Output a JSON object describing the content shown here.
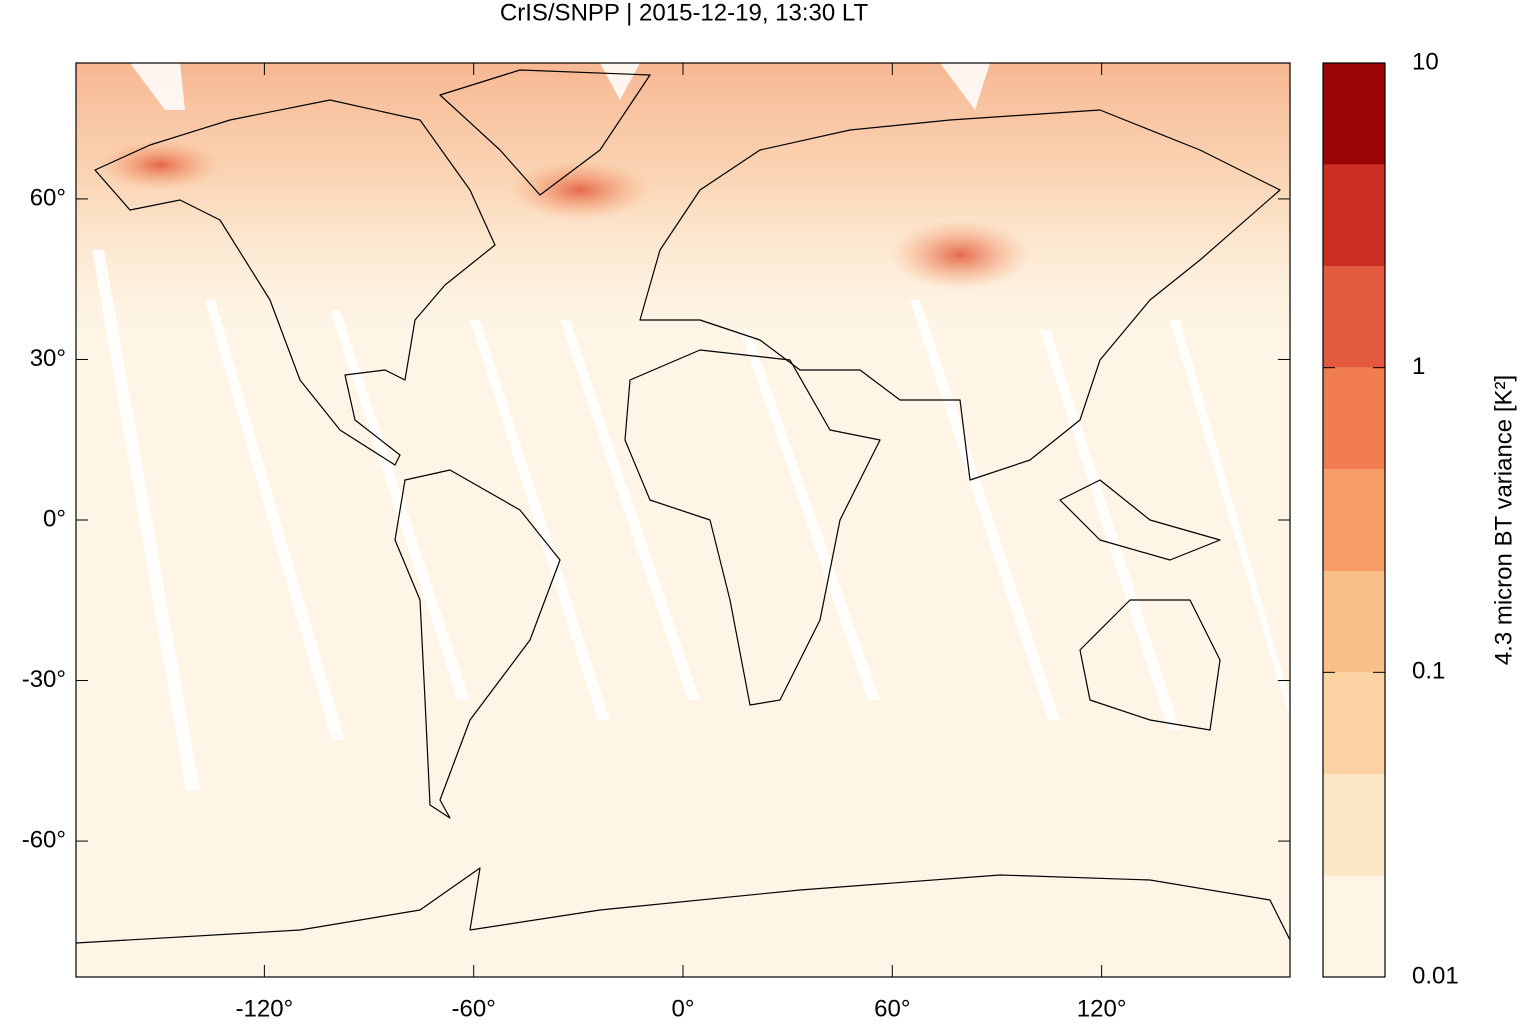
{
  "chart_data": {
    "type": "heatmap-map",
    "title": "CrIS/SNPP | 2015-12-19, 13:30 LT",
    "xlim": [
      -174,
      174
    ],
    "ylim": [
      -85.4,
      85.4
    ],
    "xticks": [
      {
        "value": -120,
        "label": "-120°"
      },
      {
        "value": -60,
        "label": "-60°"
      },
      {
        "value": 0,
        "label": "0°"
      },
      {
        "value": 60,
        "label": "60°"
      },
      {
        "value": 120,
        "label": "120°"
      }
    ],
    "yticks": [
      {
        "value": 60,
        "label": "60°"
      },
      {
        "value": 30,
        "label": "30°"
      },
      {
        "value": 0,
        "label": "0°"
      },
      {
        "value": -30,
        "label": "-30°"
      },
      {
        "value": -60,
        "label": "-60°"
      }
    ],
    "colorbar": {
      "label": "4.3 micron BT variance [K²]",
      "scale": "log",
      "lim": [
        0.01,
        10
      ],
      "ticks": [
        0.01,
        0.1,
        1,
        10
      ],
      "levels": [
        0.01,
        0.0215,
        0.0464,
        0.1,
        0.215,
        0.464,
        1,
        2.15,
        4.64,
        10
      ],
      "colors": [
        "#fef5e7",
        "#fbe6c6",
        "#fbd3a3",
        "#f9bf88",
        "#f79c66",
        "#f07c50",
        "#e35a3e",
        "#cc2e22",
        "#9b0404"
      ]
    }
  }
}
